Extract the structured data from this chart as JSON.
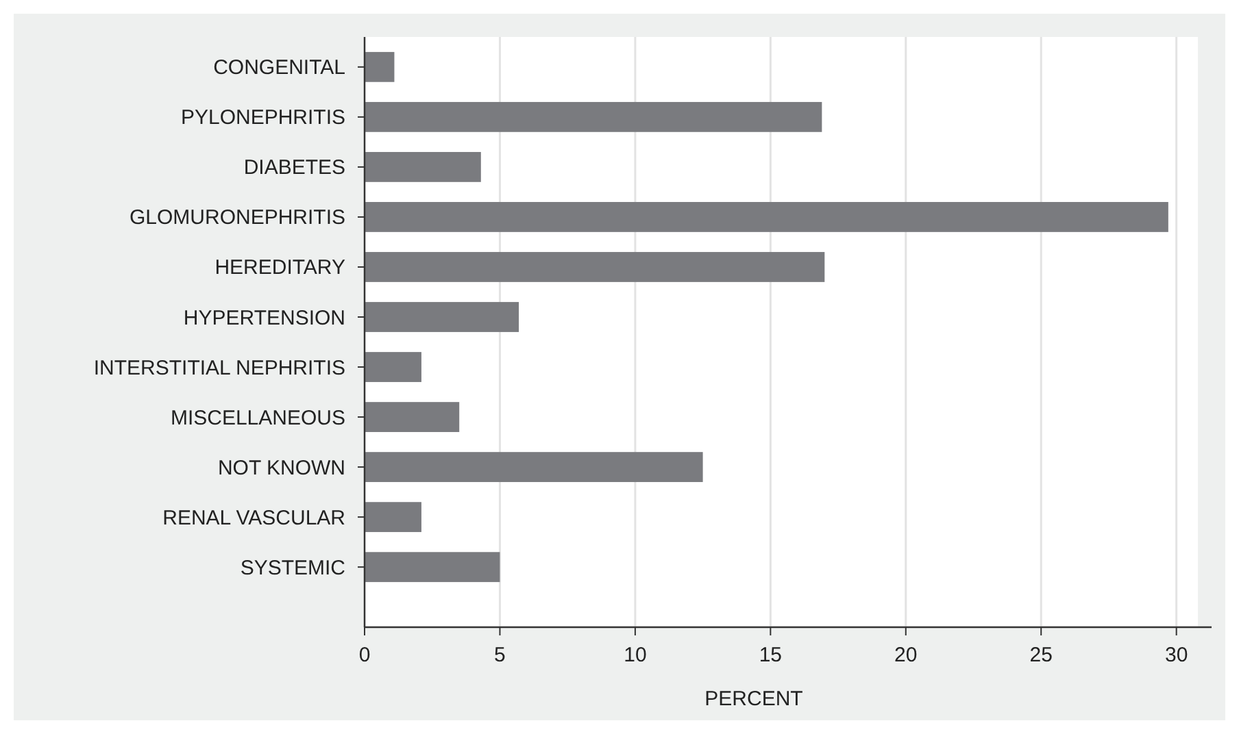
{
  "chart_data": {
    "type": "bar",
    "orientation": "horizontal",
    "xlabel": "PERCENT",
    "categories": [
      "CONGENITAL",
      "PYLONEPHRITIS",
      "DIABETES",
      "GLOMURONEPHRITIS",
      "HEREDITARY",
      "HYPERTENSION",
      "INTERSTITIAL NEPHRITIS",
      "MISCELLANEOUS",
      "NOT KNOWN",
      "RENAL VASCULAR",
      "SYSTEMIC"
    ],
    "values": [
      1.1,
      16.9,
      4.3,
      29.7,
      17.0,
      5.7,
      2.1,
      3.5,
      12.5,
      2.1,
      5.0
    ],
    "color": "#7a7b7f",
    "xlim": [
      0,
      31.3
    ],
    "xticks": [
      0,
      5,
      10,
      15,
      20,
      25,
      30
    ],
    "grid": "x"
  }
}
